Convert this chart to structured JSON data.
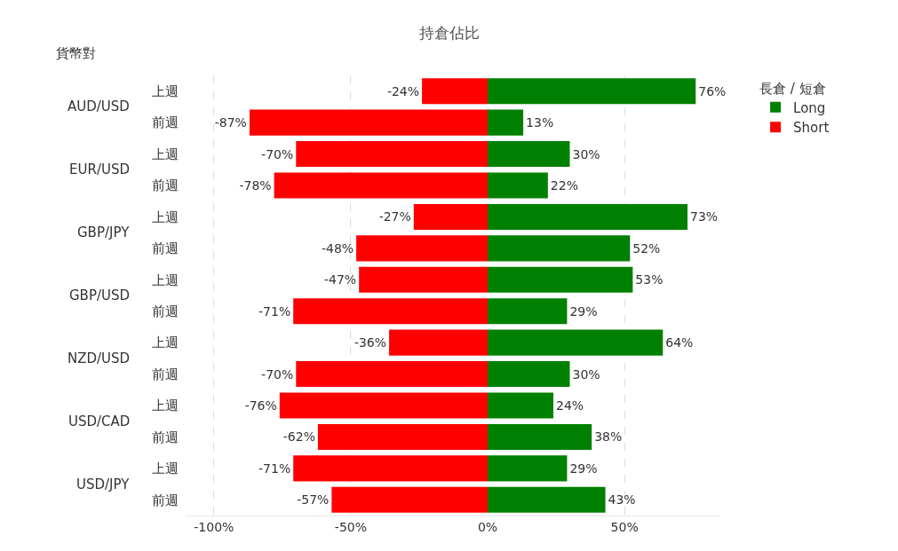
{
  "chart_data": {
    "type": "bar",
    "title": "持倉佔比",
    "ylabel": "貨幣對",
    "legend_title": "長倉 / 短倉",
    "orientation": "horizontal",
    "stacked": true,
    "categories": [
      "上週",
      "前週",
      "上週",
      "前週",
      "上週",
      "前週",
      "上週",
      "前週",
      "上週",
      "前週",
      "上週",
      "前週",
      "上週",
      "前週"
    ],
    "annotations": [
      "AUD/USD",
      "EUR/USD",
      "GBP/JPY",
      "GBP/USD",
      "NZD/USD",
      "USD/CAD",
      "USD/JPY"
    ],
    "series": [
      {
        "name": "Long",
        "color": "#008000",
        "values": [
          76,
          13,
          30,
          22,
          73,
          52,
          53,
          29,
          64,
          30,
          24,
          38,
          29,
          43
        ],
        "value_labels": [
          "76%",
          "13%",
          "30%",
          "22%",
          "73%",
          "52%",
          "53%",
          "29%",
          "64%",
          "30%",
          "24%",
          "38%",
          "29%",
          "43%"
        ]
      },
      {
        "name": "Short",
        "color": "#ff0000",
        "values": [
          -24,
          -87,
          -70,
          -78,
          -27,
          -48,
          -47,
          -71,
          -36,
          -70,
          -76,
          -62,
          -71,
          -57
        ],
        "value_labels": [
          "-24%",
          "-87%",
          "-70%",
          "-78%",
          "-27%",
          "-48%",
          "-47%",
          "-71%",
          "-36%",
          "-70%",
          "-76%",
          "-62%",
          "-71%",
          "-57%"
        ]
      }
    ],
    "xlim": [
      -110,
      85
    ],
    "xticks": [
      {
        "value": -100,
        "label": "-100%"
      },
      {
        "value": -50,
        "label": "-50%"
      },
      {
        "value": 0,
        "label": "0%"
      },
      {
        "value": 50,
        "label": "50%"
      }
    ],
    "grid": "x",
    "legend": "top right"
  }
}
